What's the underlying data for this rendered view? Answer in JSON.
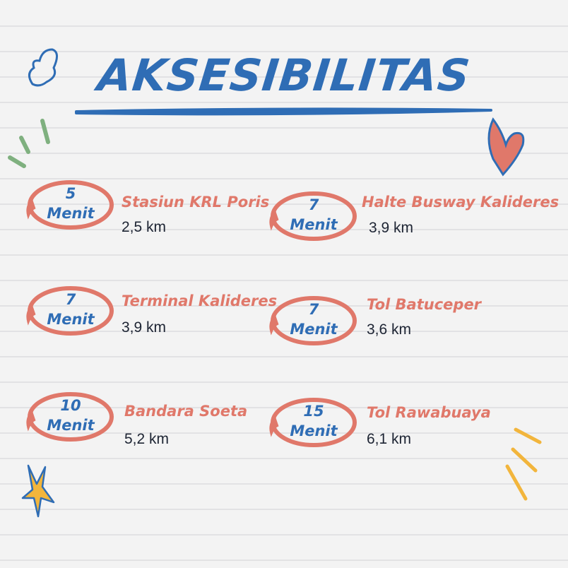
{
  "title": "AKSESIBILITAS",
  "unit_label": "Menit",
  "colors": {
    "blue": "#2f6db5",
    "salmon": "#e0786a",
    "dark": "#1d2433",
    "green": "#7fb07f",
    "yellow": "#f2b53c"
  },
  "items": [
    {
      "minutes": "5",
      "name": "Stasiun KRL Poris",
      "distance": "2,5 km"
    },
    {
      "minutes": "7",
      "name": "Halte Busway Kalideres",
      "distance": "3,9 km"
    },
    {
      "minutes": "7",
      "name": "Terminal Kalideres",
      "distance": "3,9 km"
    },
    {
      "minutes": "7",
      "name": "Tol Batuceper",
      "distance": "3,6 km"
    },
    {
      "minutes": "10",
      "name": "Bandara Soeta",
      "distance": "5,2 km"
    },
    {
      "minutes": "15",
      "name": "Tol Rawabuaya",
      "distance": "6,1 km"
    }
  ]
}
